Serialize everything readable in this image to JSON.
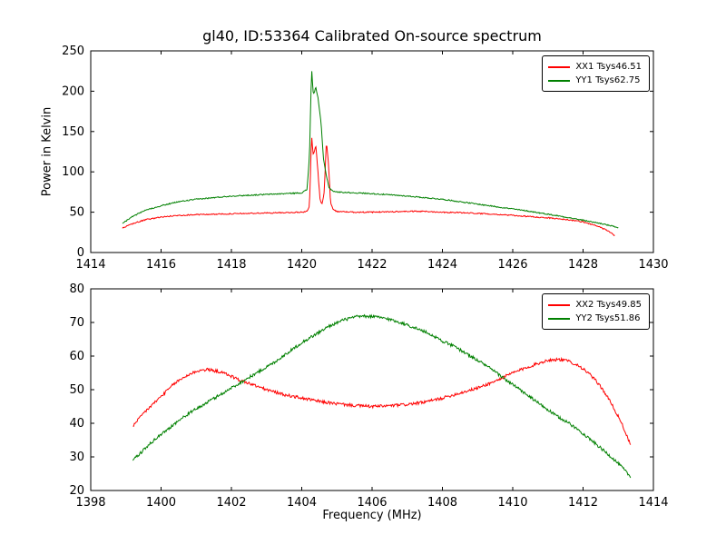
{
  "figure": {
    "background": "#ffffff",
    "text_color": "#000000"
  },
  "chart_data": [
    {
      "type": "line",
      "title": "gl40, ID:53364 Calibrated On-source spectrum",
      "xlabel": "",
      "ylabel": "Power in Kelvin",
      "xlim": [
        1414,
        1430
      ],
      "ylim": [
        0,
        250
      ],
      "xticks": [
        1414,
        1416,
        1418,
        1420,
        1422,
        1424,
        1426,
        1428,
        1430
      ],
      "yticks": [
        0,
        50,
        100,
        150,
        200,
        250
      ],
      "grid": false,
      "legend_position": "upper right",
      "series": [
        {
          "name": "XX1 Tsys46.51",
          "color": "#ff0000",
          "noise": 0.7,
          "points": [
            [
              1414.9,
              30
            ],
            [
              1415.2,
              36
            ],
            [
              1415.6,
              41
            ],
            [
              1416,
              44
            ],
            [
              1416.5,
              46
            ],
            [
              1417,
              47
            ],
            [
              1417.5,
              47.5
            ],
            [
              1418,
              48
            ],
            [
              1418.5,
              48.5
            ],
            [
              1419,
              49
            ],
            [
              1419.5,
              49.5
            ],
            [
              1420.0,
              50
            ],
            [
              1420.15,
              51
            ],
            [
              1420.22,
              58
            ],
            [
              1420.28,
              145
            ],
            [
              1420.33,
              120
            ],
            [
              1420.4,
              133
            ],
            [
              1420.46,
              100
            ],
            [
              1420.52,
              66
            ],
            [
              1420.58,
              60
            ],
            [
              1420.64,
              75
            ],
            [
              1420.7,
              138
            ],
            [
              1420.76,
              110
            ],
            [
              1420.82,
              62
            ],
            [
              1420.9,
              53
            ],
            [
              1421.0,
              51
            ],
            [
              1421.5,
              50
            ],
            [
              1422,
              50
            ],
            [
              1422.5,
              50.5
            ],
            [
              1423,
              51
            ],
            [
              1423.5,
              51
            ],
            [
              1424,
              50
            ],
            [
              1424.5,
              49.5
            ],
            [
              1425,
              48.5
            ],
            [
              1425.5,
              47.5
            ],
            [
              1426,
              46
            ],
            [
              1426.5,
              44.5
            ],
            [
              1427,
              43
            ],
            [
              1427.5,
              41
            ],
            [
              1428,
              38
            ],
            [
              1428.4,
              33
            ],
            [
              1428.7,
              27
            ],
            [
              1428.9,
              21
            ]
          ]
        },
        {
          "name": "YY1 Tsys62.75",
          "color": "#008000",
          "noise": 0.7,
          "points": [
            [
              1414.9,
              36
            ],
            [
              1415.2,
              45
            ],
            [
              1415.6,
              53
            ],
            [
              1416,
              58
            ],
            [
              1416.5,
              63
            ],
            [
              1417,
              66
            ],
            [
              1417.5,
              68
            ],
            [
              1418,
              70
            ],
            [
              1418.5,
              71
            ],
            [
              1419,
              72
            ],
            [
              1419.5,
              73
            ],
            [
              1420.0,
              74
            ],
            [
              1420.15,
              78
            ],
            [
              1420.22,
              120
            ],
            [
              1420.28,
              228
            ],
            [
              1420.33,
              195
            ],
            [
              1420.4,
              205
            ],
            [
              1420.47,
              190
            ],
            [
              1420.55,
              160
            ],
            [
              1420.62,
              115
            ],
            [
              1420.7,
              95
            ],
            [
              1420.78,
              80
            ],
            [
              1420.9,
              76
            ],
            [
              1421.0,
              75
            ],
            [
              1421.5,
              74
            ],
            [
              1422,
              73
            ],
            [
              1422.5,
              71.5
            ],
            [
              1423,
              70
            ],
            [
              1423.5,
              68
            ],
            [
              1424,
              66
            ],
            [
              1424.5,
              63
            ],
            [
              1425,
              60
            ],
            [
              1425.5,
              57
            ],
            [
              1426,
              54
            ],
            [
              1426.5,
              51
            ],
            [
              1427,
              47.5
            ],
            [
              1427.5,
              44
            ],
            [
              1428,
              40
            ],
            [
              1428.5,
              36
            ],
            [
              1429,
              31
            ]
          ]
        }
      ]
    },
    {
      "type": "line",
      "title": "",
      "xlabel": "Frequency (MHz)",
      "ylabel": "",
      "xlim": [
        1398,
        1414
      ],
      "ylim": [
        20,
        80
      ],
      "xticks": [
        1398,
        1400,
        1402,
        1404,
        1406,
        1408,
        1410,
        1412,
        1414
      ],
      "yticks": [
        20,
        30,
        40,
        50,
        60,
        70,
        80
      ],
      "grid": false,
      "legend_position": "upper right",
      "series": [
        {
          "name": "XX2 Tsys49.85",
          "color": "#ff0000",
          "noise": 0.45,
          "points": [
            [
              1399.2,
              39
            ],
            [
              1399.5,
              43
            ],
            [
              1399.8,
              46
            ],
            [
              1400.1,
              49
            ],
            [
              1400.4,
              52
            ],
            [
              1400.7,
              54
            ],
            [
              1401.0,
              55.5
            ],
            [
              1401.3,
              56
            ],
            [
              1401.6,
              55.5
            ],
            [
              1401.9,
              54.5
            ],
            [
              1402.2,
              53
            ],
            [
              1402.6,
              51.5
            ],
            [
              1403.0,
              50
            ],
            [
              1403.5,
              48.5
            ],
            [
              1404.0,
              47.5
            ],
            [
              1404.5,
              46.5
            ],
            [
              1405.0,
              45.8
            ],
            [
              1405.5,
              45.3
            ],
            [
              1406.0,
              45
            ],
            [
              1406.5,
              45.2
            ],
            [
              1407.0,
              45.6
            ],
            [
              1407.5,
              46.3
            ],
            [
              1408.0,
              47.5
            ],
            [
              1408.5,
              49
            ],
            [
              1409.0,
              50.5
            ],
            [
              1409.5,
              52.5
            ],
            [
              1410.0,
              55
            ],
            [
              1410.5,
              57
            ],
            [
              1411.0,
              58.8
            ],
            [
              1411.3,
              59
            ],
            [
              1411.6,
              58.5
            ],
            [
              1411.9,
              57
            ],
            [
              1412.2,
              54.5
            ],
            [
              1412.5,
              51
            ],
            [
              1412.8,
              46
            ],
            [
              1413.1,
              40
            ],
            [
              1413.35,
              33.5
            ]
          ]
        },
        {
          "name": "YY2 Tsys51.86",
          "color": "#008000",
          "noise": 0.45,
          "points": [
            [
              1399.2,
              29
            ],
            [
              1399.5,
              32
            ],
            [
              1399.8,
              35
            ],
            [
              1400.1,
              37.5
            ],
            [
              1400.4,
              40
            ],
            [
              1400.8,
              43
            ],
            [
              1401.2,
              45.5
            ],
            [
              1401.6,
              48
            ],
            [
              1402.0,
              50.5
            ],
            [
              1402.4,
              53
            ],
            [
              1402.8,
              55.5
            ],
            [
              1403.2,
              58
            ],
            [
              1403.6,
              61
            ],
            [
              1404.0,
              64
            ],
            [
              1404.4,
              66.5
            ],
            [
              1404.8,
              69
            ],
            [
              1405.2,
              70.8
            ],
            [
              1405.6,
              71.8
            ],
            [
              1406.0,
              71.8
            ],
            [
              1406.4,
              71.2
            ],
            [
              1406.8,
              70
            ],
            [
              1407.2,
              68.5
            ],
            [
              1407.6,
              66.8
            ],
            [
              1408.0,
              64.5
            ],
            [
              1408.4,
              62.5
            ],
            [
              1408.8,
              60
            ],
            [
              1409.2,
              57.5
            ],
            [
              1409.6,
              54.5
            ],
            [
              1410.0,
              51.5
            ],
            [
              1410.4,
              48.5
            ],
            [
              1410.8,
              45.5
            ],
            [
              1411.2,
              42.5
            ],
            [
              1411.6,
              40
            ],
            [
              1412.0,
              37
            ],
            [
              1412.4,
              33.5
            ],
            [
              1412.8,
              30
            ],
            [
              1413.1,
              27
            ],
            [
              1413.35,
              24
            ]
          ]
        }
      ]
    }
  ]
}
